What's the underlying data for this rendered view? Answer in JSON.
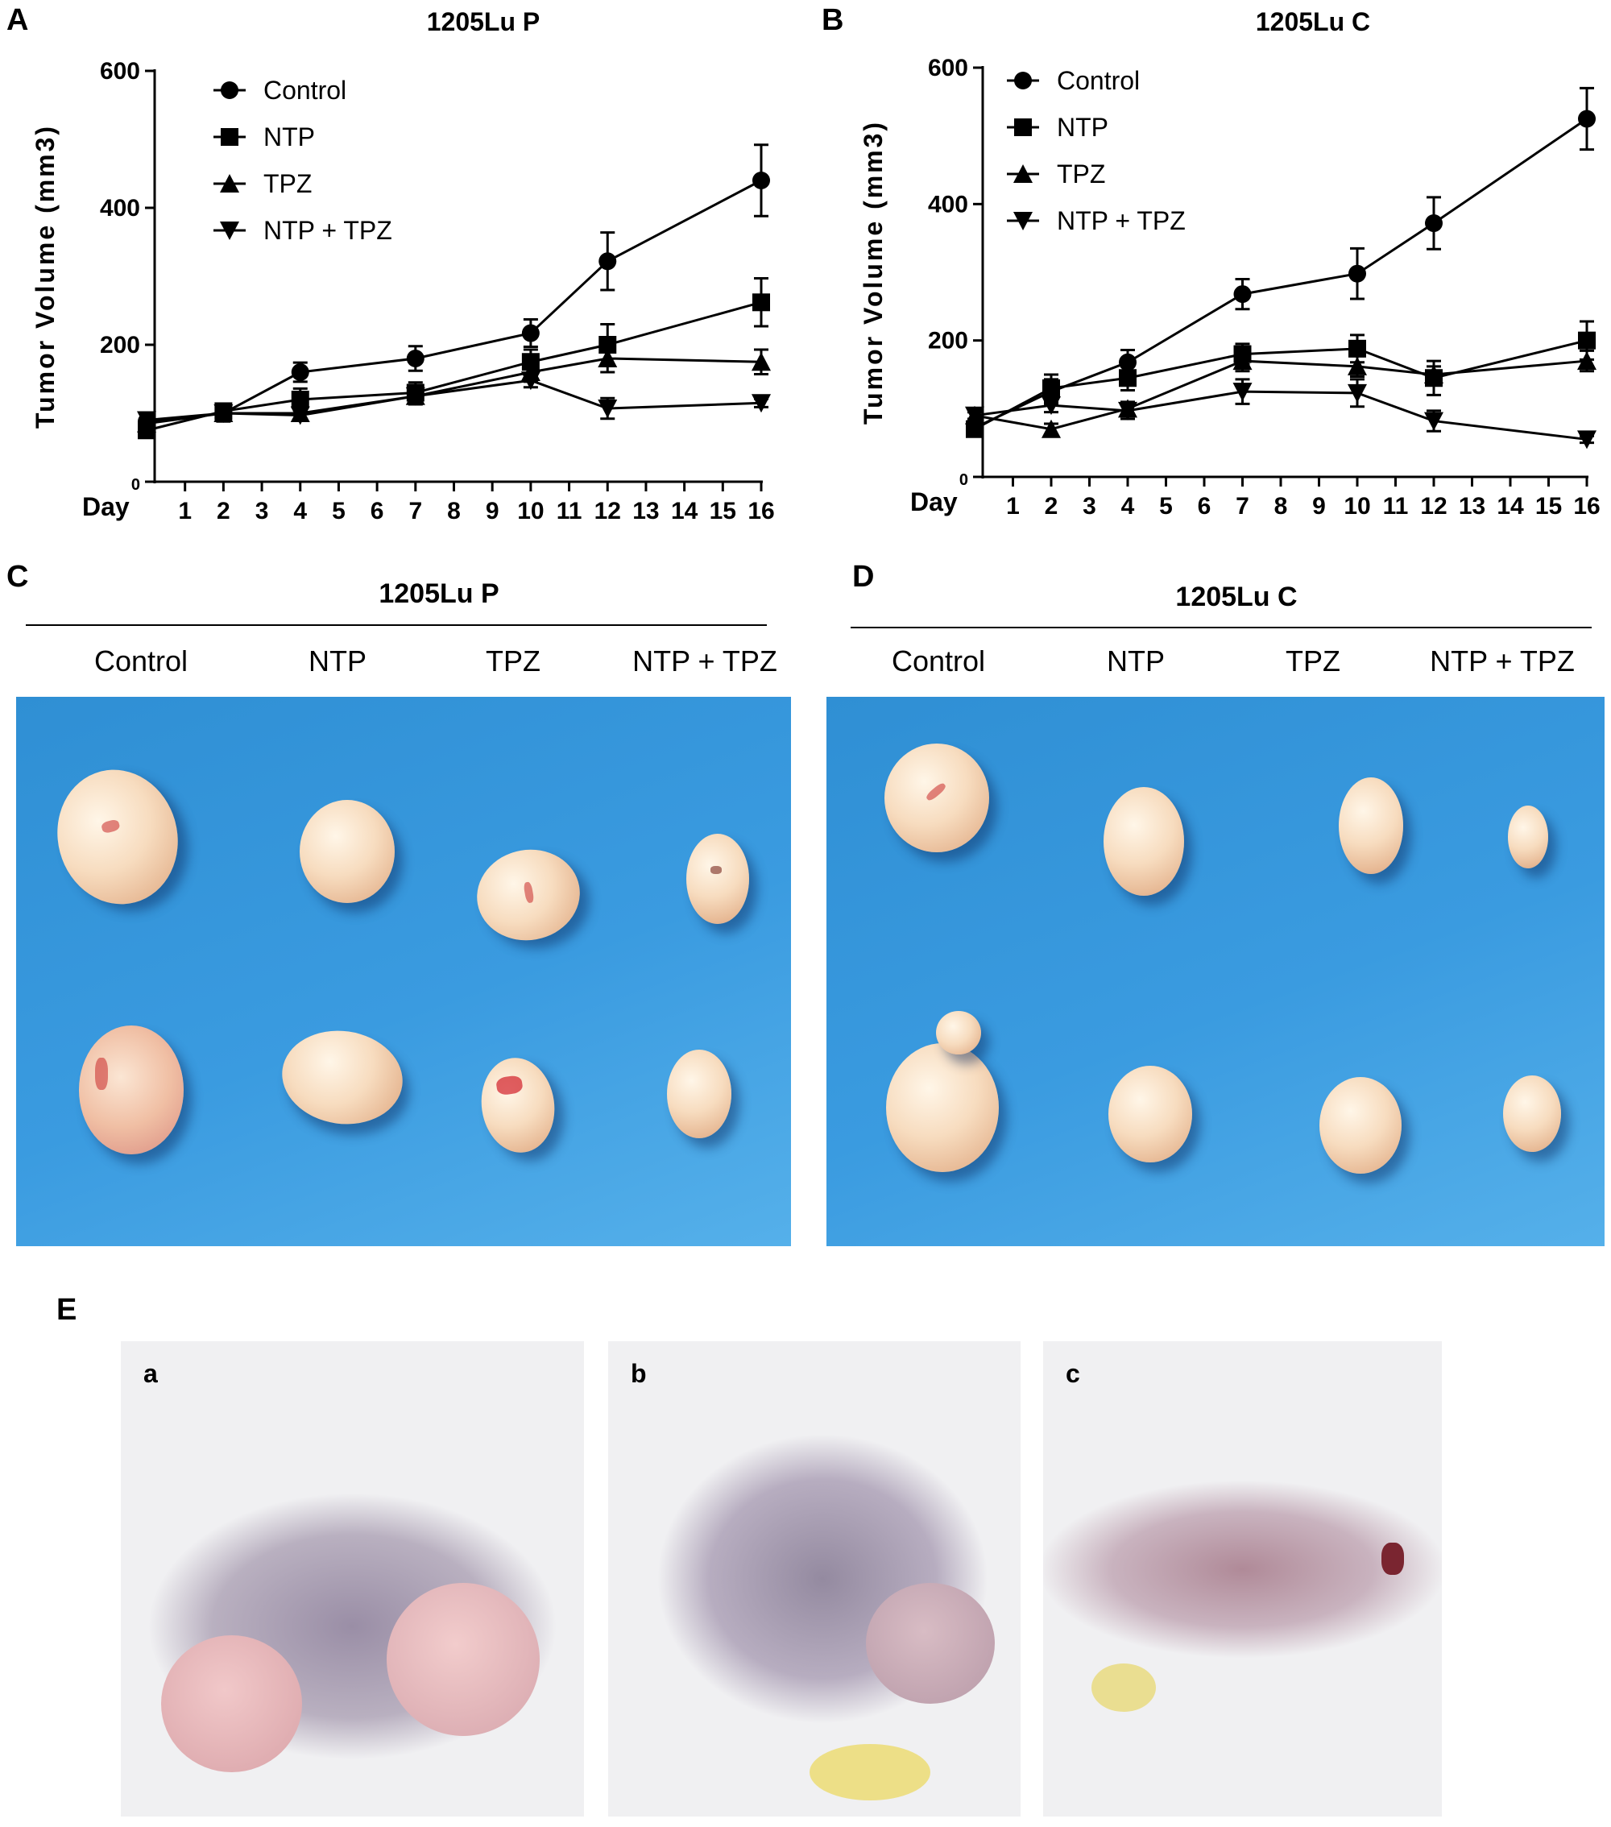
{
  "panels": {
    "A": "A",
    "B": "B",
    "C": "C",
    "D": "D",
    "E": "E"
  },
  "chart_data": [
    {
      "type": "line",
      "panel": "A",
      "title": "1205Lu P",
      "ylabel": "Tumor Volume (mm3)",
      "xlabel": "Day",
      "ylim": [
        0,
        600
      ],
      "yticks": [
        "0",
        "200",
        "400",
        "600"
      ],
      "xticks": [
        "1",
        "2",
        "3",
        "4",
        "5",
        "6",
        "7",
        "8",
        "9",
        "10",
        "11",
        "12",
        "13",
        "14",
        "15",
        "16"
      ],
      "legend_position": "top-left",
      "series": [
        {
          "name": "Control",
          "marker": "circle",
          "x": [
            0,
            2,
            4,
            7,
            10,
            12,
            16
          ],
          "y": [
            88,
            100,
            160,
            180,
            217,
            322,
            440
          ],
          "err": [
            6,
            12,
            14,
            18,
            20,
            42,
            52
          ]
        },
        {
          "name": "NTP",
          "marker": "square",
          "x": [
            0,
            2,
            4,
            7,
            10,
            12,
            16
          ],
          "y": [
            75,
            103,
            120,
            130,
            175,
            200,
            262
          ],
          "err": [
            6,
            10,
            16,
            15,
            18,
            30,
            35
          ]
        },
        {
          "name": "TPZ",
          "marker": "triangle-up",
          "x": [
            0,
            2,
            4,
            7,
            10,
            12,
            16
          ],
          "y": [
            85,
            100,
            100,
            125,
            160,
            180,
            175
          ],
          "err": [
            5,
            8,
            10,
            12,
            14,
            20,
            18
          ]
        },
        {
          "name": "NTP + TPZ",
          "marker": "triangle-down",
          "x": [
            0,
            2,
            4,
            7,
            10,
            12,
            16
          ],
          "y": [
            90,
            100,
            97,
            125,
            148,
            107,
            115
          ],
          "err": [
            5,
            8,
            8,
            10,
            10,
            15,
            6
          ]
        }
      ]
    },
    {
      "type": "line",
      "panel": "B",
      "title": "1205Lu C",
      "ylabel": "Tumor Volume (mm3)",
      "xlabel": "Day",
      "ylim": [
        0,
        600
      ],
      "yticks": [
        "0",
        "200",
        "400",
        "600"
      ],
      "xticks": [
        "1",
        "2",
        "3",
        "4",
        "5",
        "6",
        "7",
        "8",
        "9",
        "10",
        "11",
        "12",
        "13",
        "14",
        "15",
        "16"
      ],
      "legend_position": "top-left",
      "series": [
        {
          "name": "Control",
          "marker": "circle",
          "x": [
            0,
            2,
            4,
            7,
            10,
            12,
            16
          ],
          "y": [
            72,
            125,
            168,
            268,
            298,
            372,
            525
          ],
          "err": [
            6,
            18,
            18,
            22,
            37,
            38,
            45
          ]
        },
        {
          "name": "NTP",
          "marker": "square",
          "x": [
            0,
            2,
            4,
            7,
            10,
            12,
            16
          ],
          "y": [
            70,
            130,
            145,
            180,
            188,
            145,
            200
          ],
          "err": [
            6,
            20,
            18,
            15,
            20,
            25,
            28
          ]
        },
        {
          "name": "TPZ",
          "marker": "triangle-up",
          "x": [
            0,
            2,
            4,
            7,
            10,
            12,
            16
          ],
          "y": [
            90,
            70,
            100,
            170,
            162,
            150,
            170
          ],
          "err": [
            5,
            8,
            10,
            15,
            15,
            12,
            15
          ]
        },
        {
          "name": "NTP + TPZ",
          "marker": "triangle-down",
          "x": [
            0,
            2,
            4,
            7,
            10,
            12,
            16
          ],
          "y": [
            90,
            105,
            97,
            125,
            123,
            82,
            55
          ],
          "err": [
            5,
            10,
            12,
            18,
            20,
            15,
            5
          ]
        }
      ]
    }
  ],
  "panel_c": {
    "title": "1205Lu P",
    "groups": [
      "Control",
      "NTP",
      "TPZ",
      "NTP + TPZ"
    ]
  },
  "panel_d": {
    "title": "1205Lu C",
    "groups": [
      "Control",
      "NTP",
      "TPZ",
      "NTP + TPZ"
    ]
  },
  "panel_e": {
    "sub_labels": [
      "a",
      "b",
      "c"
    ]
  },
  "colors": {
    "line": "#000000",
    "photo_background": "#3a9be0",
    "tumor": "#f5d7b5",
    "mouse_fur": "#f2f2f4",
    "mouse_skin": "#9e90a6"
  }
}
